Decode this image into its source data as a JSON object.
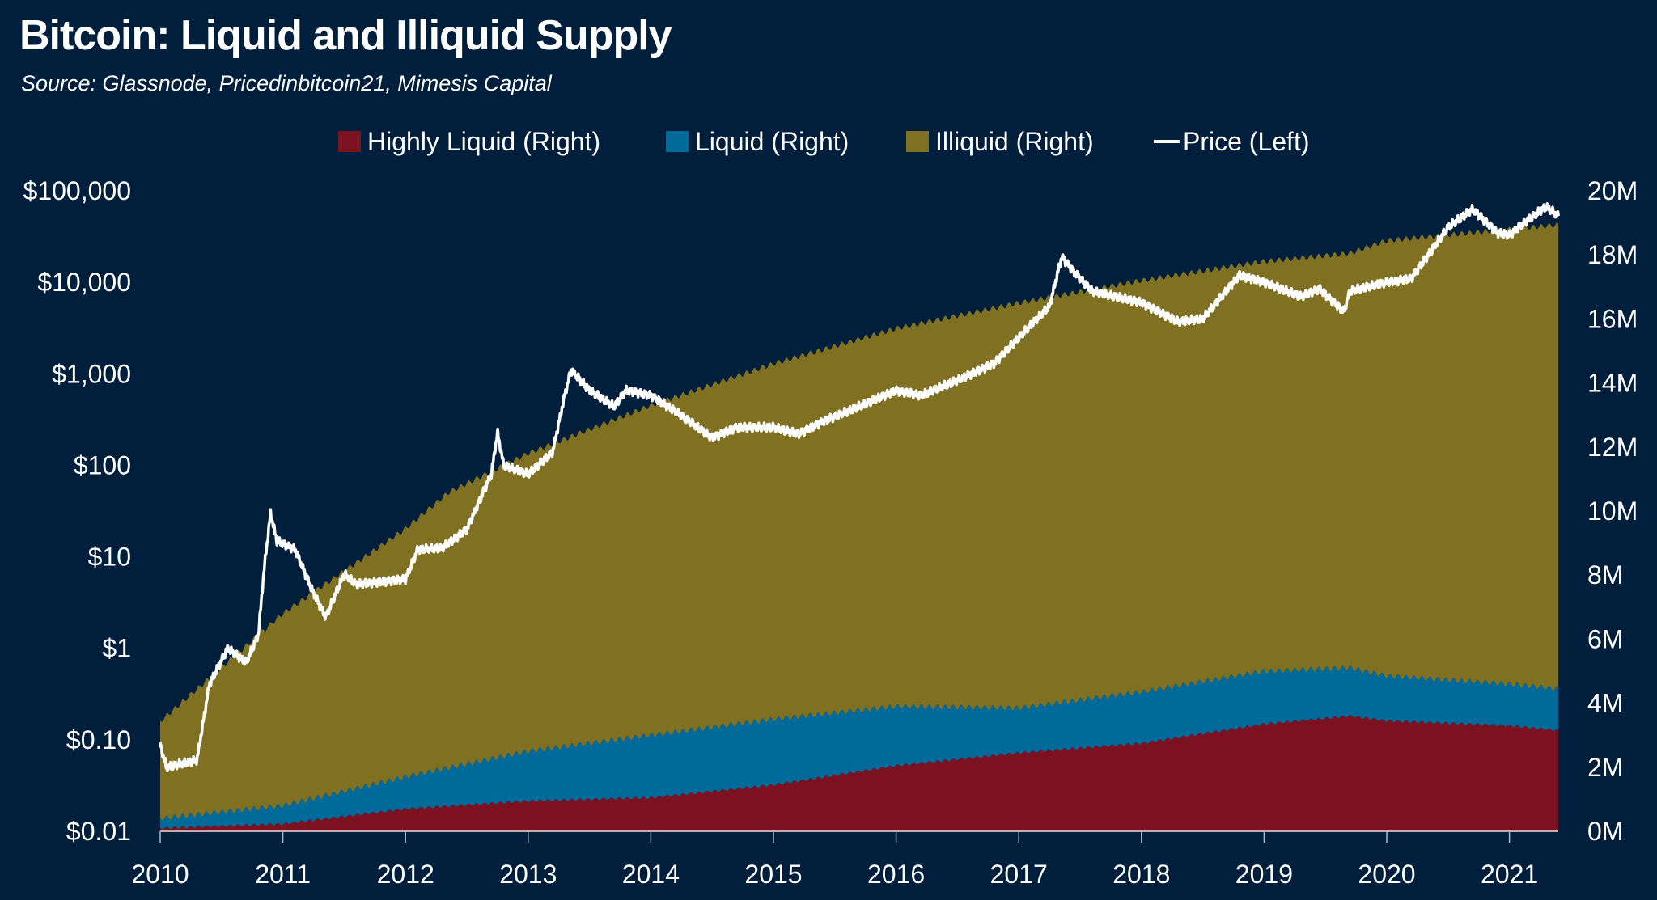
{
  "title": "Bitcoin: Liquid and Illiquid Supply",
  "subtitle": "Source: Glassnode, Pricedinbitcoin21, Mimesis Capital",
  "colors": {
    "background": "#001f3c",
    "highly_liquid": "#7c1120",
    "liquid": "#006a9a",
    "illiquid": "#7f7022",
    "price": "#ffffff"
  },
  "chart_data": {
    "type": "area",
    "title": "Bitcoin: Liquid and Illiquid Supply",
    "stacked": true,
    "legend_position": "top",
    "grid": false,
    "x_ticks": [
      "2010",
      "2011",
      "2012",
      "2013",
      "2014",
      "2015",
      "2016",
      "2017",
      "2018",
      "2019",
      "2020",
      "2021"
    ],
    "xlim": [
      2010,
      2021.4
    ],
    "left_axis": {
      "scale": "log",
      "ylim": [
        0.01,
        100000
      ],
      "tick_labels": [
        "$0.01",
        "$0.10",
        "$1",
        "$10",
        "$100",
        "$1,000",
        "$10,000",
        "$100,000"
      ],
      "tick_values": [
        0.01,
        0.1,
        1,
        10,
        100,
        1000,
        10000,
        100000
      ]
    },
    "right_axis": {
      "scale": "linear",
      "ylim": [
        0,
        20000000
      ],
      "tick_labels": [
        "0M",
        "2M",
        "4M",
        "6M",
        "8M",
        "10M",
        "12M",
        "14M",
        "16M",
        "18M",
        "20M"
      ]
    },
    "series": [
      {
        "name": "Highly Liquid (Right)",
        "axis": "right",
        "type": "area",
        "x": [
          2010,
          2011,
          2012,
          2013,
          2014,
          2015,
          2016,
          2017,
          2018,
          2019,
          2019.7,
          2020,
          2021,
          2021.4
        ],
        "values": [
          0.1,
          0.23,
          0.7,
          0.95,
          1.05,
          1.45,
          2.05,
          2.45,
          2.75,
          3.35,
          3.6,
          3.45,
          3.3,
          3.15
        ],
        "unit": "M"
      },
      {
        "name": "Liquid (Right)",
        "axis": "right",
        "type": "area",
        "x": [
          2010,
          2011,
          2012,
          2013,
          2014,
          2015,
          2016,
          2017,
          2018,
          2019,
          2019.7,
          2020,
          2021,
          2021.4
        ],
        "values": [
          0.3,
          0.57,
          1.0,
          1.55,
          1.95,
          2.05,
          1.85,
          1.4,
          1.6,
          1.65,
          1.5,
          1.4,
          1.3,
          1.3
        ],
        "unit": "M"
      },
      {
        "name": "Illiquid (Right)",
        "axis": "right",
        "type": "area",
        "x": [
          2010,
          2011,
          2012,
          2012.35,
          2013,
          2014,
          2015,
          2016,
          2017,
          2018,
          2019,
          2019.7,
          2020,
          2021,
          2021.4
        ],
        "values": [
          3.03,
          6.0,
          7.75,
          8.6,
          9.3,
          10.3,
          11.1,
          11.8,
          12.65,
          12.85,
          12.8,
          12.95,
          13.6,
          14.2,
          14.49
        ],
        "unit": "M"
      },
      {
        "name": "Price (Left)",
        "axis": "left",
        "type": "line",
        "x": [
          2010,
          2010.05,
          2010.3,
          2010.4,
          2010.55,
          2010.7,
          2010.8,
          2010.85,
          2010.9,
          2010.95,
          2011.1,
          2011.25,
          2011.35,
          2011.5,
          2011.6,
          2012,
          2012.1,
          2012.3,
          2012.5,
          2012.7,
          2012.75,
          2012.8,
          2013,
          2013.2,
          2013.3,
          2013.35,
          2013.5,
          2013.7,
          2013.8,
          2014,
          2014.2,
          2014.5,
          2014.7,
          2015,
          2015.2,
          2015.4,
          2015.7,
          2016,
          2016.2,
          2016.5,
          2016.8,
          2017,
          2017.25,
          2017.35,
          2017.45,
          2017.6,
          2018,
          2018.3,
          2018.5,
          2018.8,
          2019,
          2019.3,
          2019.45,
          2019.65,
          2019.7,
          2020,
          2020.2,
          2020.5,
          2020.7,
          2020.9,
          2021,
          2021.15,
          2021.3,
          2021.4
        ],
        "values": [
          0.09,
          0.05,
          0.06,
          0.4,
          1,
          0.7,
          1.4,
          8,
          30,
          15,
          12,
          4,
          2.2,
          6.5,
          5,
          5.7,
          12,
          12.5,
          20,
          80,
          230,
          100,
          80,
          140,
          600,
          1100,
          660,
          440,
          660,
          580,
          390,
          200,
          260,
          260,
          220,
          300,
          440,
          660,
          580,
          850,
          1300,
          2500,
          5500,
          19000,
          13000,
          8000,
          6000,
          3700,
          4000,
          12000,
          10000,
          7000,
          8500,
          4800,
          8000,
          10000,
          11000,
          40000,
          63000,
          35000,
          33000,
          48000,
          67000,
          53000
        ]
      }
    ]
  }
}
